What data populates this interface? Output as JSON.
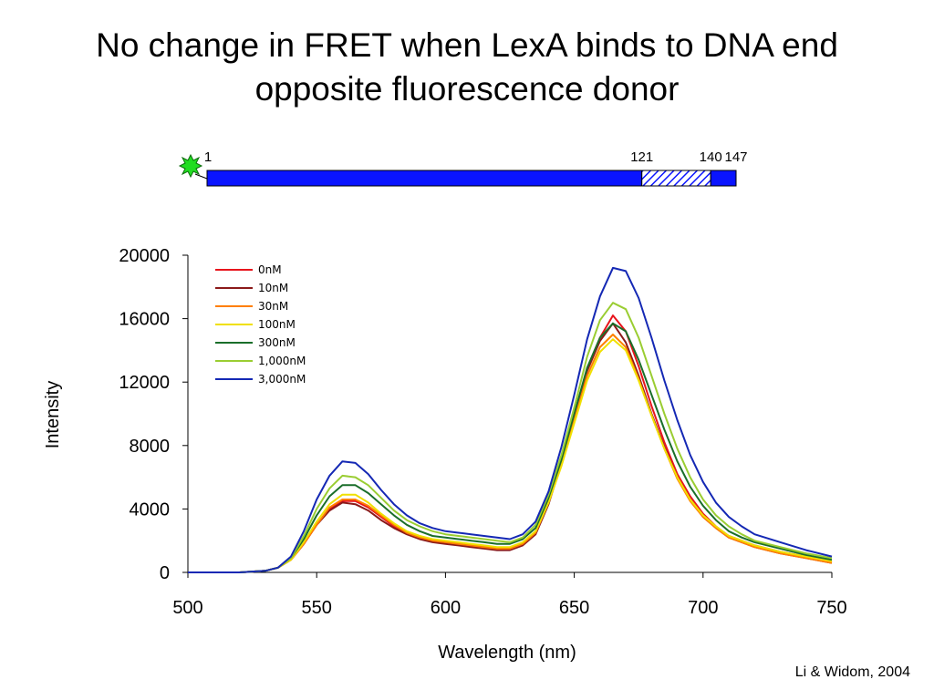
{
  "slide": {
    "title_line1": "No change in FRET when LexA binds to DNA end",
    "title_line2": "opposite fluorescence donor",
    "citation": "Li & Widom, 2004"
  },
  "construct": {
    "labels": [
      "1",
      "121",
      "140",
      "147"
    ],
    "segments": [
      {
        "start": 1,
        "end": 121,
        "fill": "solid"
      },
      {
        "start": 121,
        "end": 140,
        "fill": "hatched"
      },
      {
        "start": 140,
        "end": 147,
        "fill": "solid"
      }
    ],
    "bar_color": "#0a14ff",
    "donor_icon": "green-star-burst-icon",
    "donor_color": "#22dd22"
  },
  "chart_data": {
    "type": "line",
    "title": "",
    "xlabel": "Wavelength (nm)",
    "ylabel": "Intensity",
    "xlim": [
      500,
      750
    ],
    "ylim": [
      0,
      20000
    ],
    "x_ticks": [
      500,
      550,
      600,
      650,
      700,
      750
    ],
    "y_ticks": [
      0,
      4000,
      8000,
      12000,
      16000,
      20000
    ],
    "legend_position": "top-left",
    "x": [
      500,
      520,
      530,
      535,
      540,
      545,
      550,
      555,
      560,
      565,
      570,
      575,
      580,
      585,
      590,
      595,
      600,
      605,
      610,
      615,
      620,
      625,
      630,
      635,
      640,
      645,
      650,
      655,
      660,
      665,
      670,
      675,
      680,
      685,
      690,
      695,
      700,
      705,
      710,
      715,
      720,
      730,
      740,
      750
    ],
    "series": [
      {
        "name": "0nM",
        "color": "#e8141c",
        "values": [
          0,
          0,
          100,
          300,
          800,
          1800,
          3000,
          4000,
          4500,
          4500,
          4100,
          3500,
          2900,
          2500,
          2200,
          2000,
          1900,
          1800,
          1700,
          1600,
          1500,
          1500,
          1800,
          2500,
          4500,
          7000,
          10000,
          12800,
          14800,
          16200,
          15200,
          13000,
          10500,
          8200,
          6200,
          4800,
          3700,
          2900,
          2300,
          2000,
          1700,
          1300,
          1000,
          700
        ]
      },
      {
        "name": "10nM",
        "color": "#8b1a1a",
        "values": [
          0,
          0,
          100,
          300,
          800,
          1800,
          3000,
          3900,
          4400,
          4300,
          3900,
          3300,
          2800,
          2400,
          2100,
          1900,
          1800,
          1700,
          1600,
          1500,
          1400,
          1400,
          1700,
          2400,
          4300,
          6900,
          9800,
          12700,
          14600,
          15700,
          14500,
          12400,
          10000,
          7900,
          6000,
          4600,
          3500,
          2800,
          2200,
          1900,
          1600,
          1200,
          900,
          600
        ]
      },
      {
        "name": "30nM",
        "color": "#ff7f00",
        "values": [
          0,
          0,
          100,
          300,
          800,
          1800,
          3000,
          4100,
          4600,
          4600,
          4200,
          3600,
          3000,
          2500,
          2200,
          2000,
          1900,
          1800,
          1700,
          1600,
          1500,
          1500,
          1800,
          2500,
          4400,
          6800,
          9600,
          12400,
          14200,
          15000,
          14200,
          12200,
          9900,
          7800,
          5900,
          4500,
          3500,
          2800,
          2200,
          1900,
          1600,
          1200,
          900,
          600
        ]
      },
      {
        "name": "100nM",
        "color": "#f0e000",
        "values": [
          0,
          0,
          100,
          300,
          800,
          1900,
          3200,
          4300,
          4900,
          4900,
          4400,
          3700,
          3100,
          2600,
          2300,
          2100,
          2000,
          1900,
          1800,
          1700,
          1600,
          1600,
          1900,
          2600,
          4400,
          6700,
          9400,
          12100,
          13900,
          14700,
          14000,
          12100,
          9900,
          7800,
          6000,
          4600,
          3600,
          2900,
          2300,
          2000,
          1700,
          1300,
          1000,
          700
        ]
      },
      {
        "name": "300nM",
        "color": "#1a6e2a",
        "values": [
          0,
          0,
          100,
          300,
          900,
          2100,
          3600,
          4800,
          5500,
          5500,
          5000,
          4300,
          3600,
          3000,
          2600,
          2300,
          2200,
          2100,
          2000,
          1900,
          1800,
          1800,
          2100,
          2800,
          4700,
          7100,
          10000,
          12900,
          14800,
          15700,
          15200,
          13400,
          11200,
          9000,
          7000,
          5400,
          4200,
          3300,
          2600,
          2200,
          1900,
          1500,
          1100,
          800
        ]
      },
      {
        "name": "1,000nM",
        "color": "#9acd32",
        "values": [
          0,
          0,
          100,
          300,
          900,
          2300,
          4000,
          5300,
          6100,
          6000,
          5500,
          4700,
          3900,
          3300,
          2900,
          2600,
          2400,
          2300,
          2200,
          2100,
          2000,
          1900,
          2200,
          3000,
          4900,
          7400,
          10400,
          13600,
          15900,
          17000,
          16600,
          14800,
          12400,
          10000,
          7800,
          6000,
          4600,
          3600,
          2900,
          2400,
          2000,
          1600,
          1200,
          900
        ]
      },
      {
        "name": "3,000nM",
        "color": "#1428b4",
        "values": [
          0,
          0,
          100,
          300,
          1000,
          2600,
          4600,
          6100,
          7000,
          6900,
          6200,
          5200,
          4300,
          3600,
          3100,
          2800,
          2600,
          2500,
          2400,
          2300,
          2200,
          2100,
          2400,
          3200,
          5100,
          7900,
          11200,
          14700,
          17400,
          19200,
          19000,
          17300,
          14800,
          12100,
          9600,
          7400,
          5700,
          4400,
          3500,
          2900,
          2400,
          1900,
          1400,
          1000
        ]
      }
    ]
  }
}
